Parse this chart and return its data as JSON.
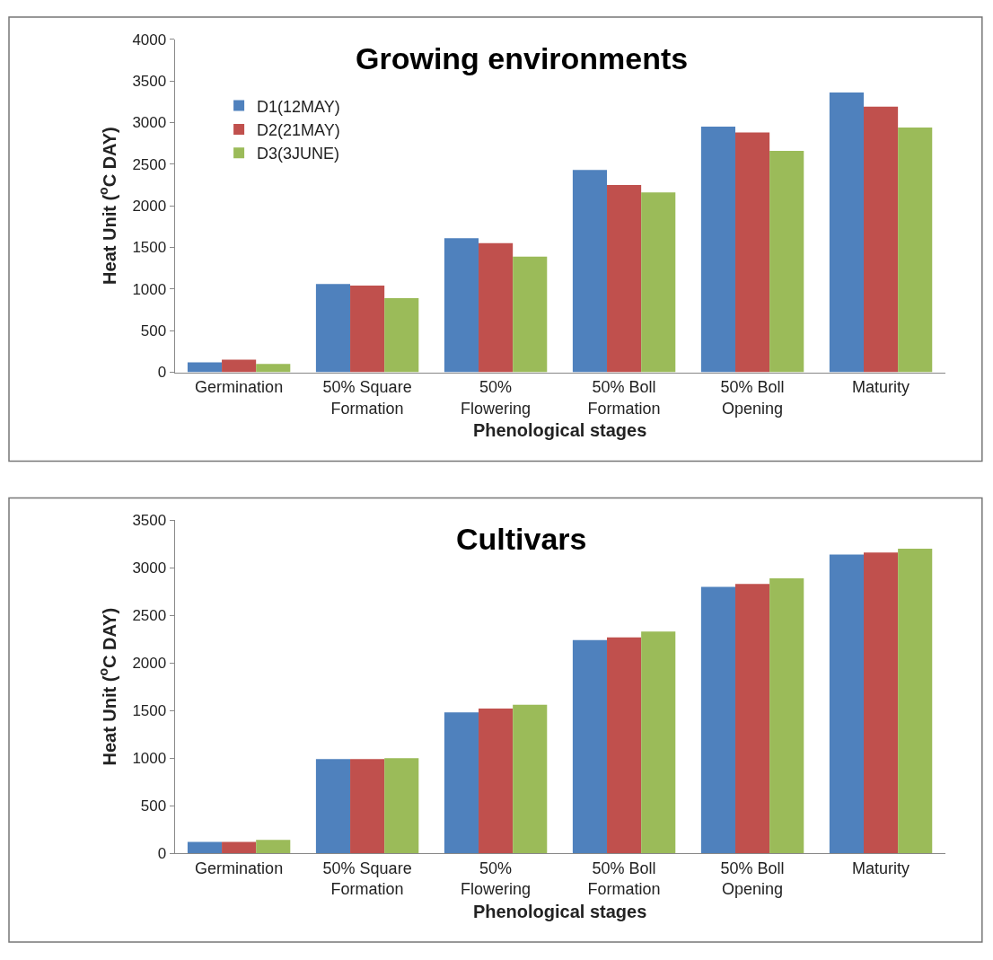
{
  "chart_data": [
    {
      "type": "bar",
      "title": "Growing environments",
      "xlabel": "Phenological stages",
      "ylabel": "Heat Unit ($^{o}$C DAY)",
      "categories": [
        "Germination",
        "50% Square\nFormation",
        "50%\nFlowering",
        "50% Boll\nFormation",
        "50% Boll\nOpening",
        "Maturity"
      ],
      "series": [
        {
          "name": "D1(12MAY)",
          "color": "#4f81bd",
          "values": [
            120,
            1060,
            1610,
            2430,
            2950,
            3360
          ]
        },
        {
          "name": "D2(21MAY)",
          "color": "#c0504d",
          "values": [
            150,
            1040,
            1550,
            2250,
            2880,
            3190
          ]
        },
        {
          "name": "D3(3JUNE)",
          "color": "#9bbb59",
          "values": [
            100,
            890,
            1390,
            2160,
            2660,
            2940
          ]
        }
      ],
      "ylim": [
        0,
        4000
      ],
      "yticks": [
        0,
        500,
        1000,
        1500,
        2000,
        2500,
        3000,
        3500,
        4000
      ],
      "legend": "top left"
    },
    {
      "type": "bar",
      "title": "Cultivars",
      "xlabel": "Phenological stages",
      "ylabel": "Heat Unit ($^{o}$C DAY)",
      "categories": [
        "Germination",
        "50% Square\nFormation",
        "50%\nFlowering",
        "50% Boll\nFormation",
        "50% Boll\nOpening",
        "Maturity"
      ],
      "series": [
        {
          "color": "#4f81bd",
          "values": [
            120,
            990,
            1480,
            2240,
            2800,
            3140
          ]
        },
        {
          "color": "#c0504d",
          "values": [
            120,
            990,
            1520,
            2270,
            2830,
            3160
          ]
        },
        {
          "color": "#9bbb59",
          "values": [
            140,
            1000,
            1560,
            2330,
            2890,
            3200
          ]
        }
      ],
      "ylim": [
        0,
        3500
      ],
      "yticks": [
        0,
        500,
        1000,
        1500,
        2000,
        2500,
        3000,
        3500
      ]
    }
  ]
}
